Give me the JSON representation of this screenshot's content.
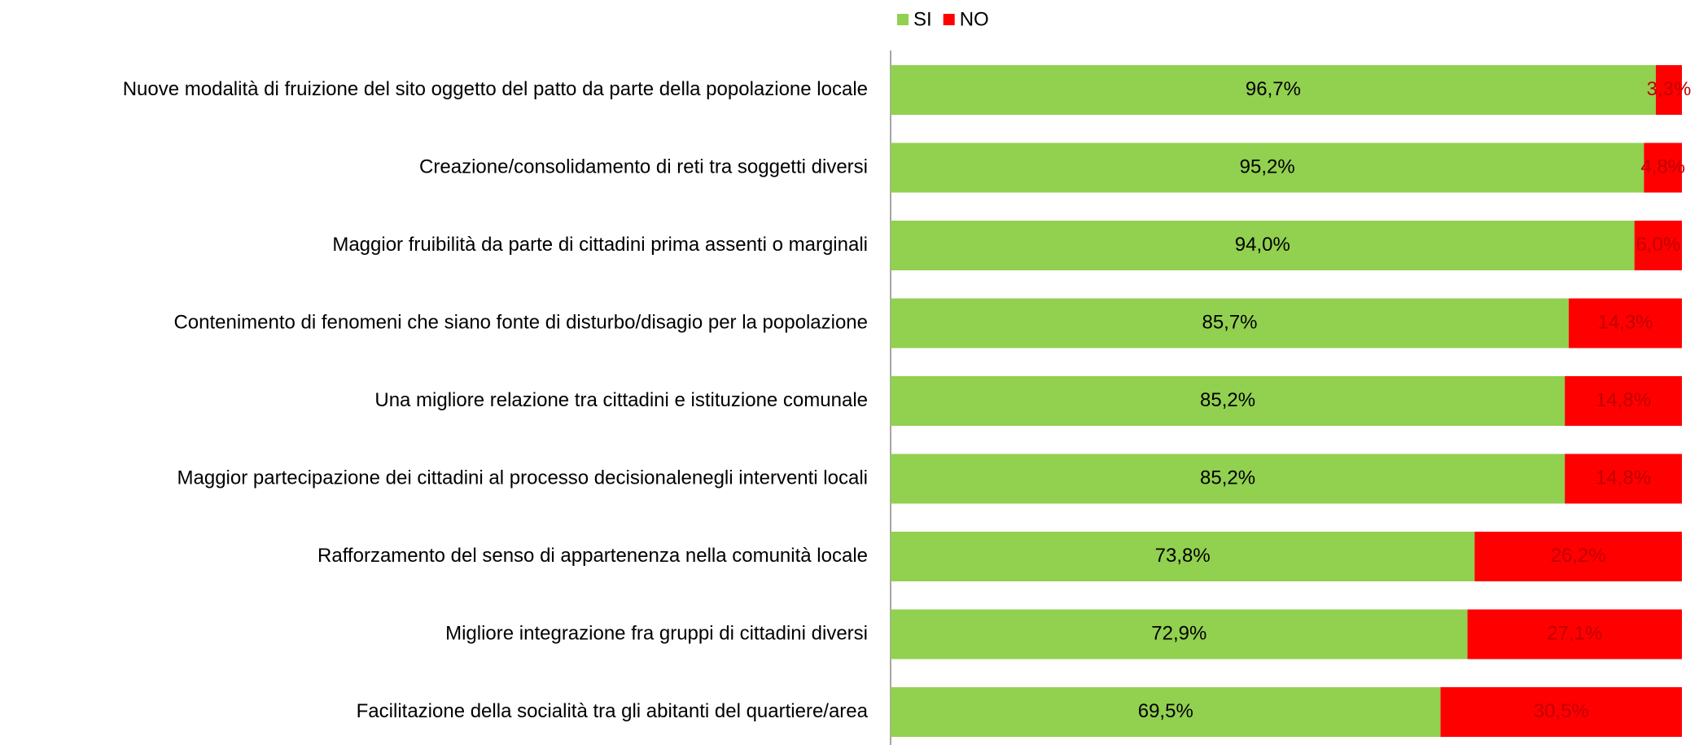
{
  "chart_data": {
    "type": "stacked_bar_horizontal",
    "categories": [
      "Nuove modalità di fruizione del sito oggetto del patto da parte della popolazione locale",
      "Creazione/consolidamento di reti tra soggetti diversi",
      "Maggior fruibilità da parte di cittadini prima assenti o marginali",
      "Contenimento di fenomeni che siano fonte di disturbo/disagio per la popolazione ",
      "Una migliore relazione tra cittadini e istituzione comunale",
      "Maggior partecipazione dei cittadini al processo decisionalenegli interventi locali",
      "Rafforzamento del senso di appartenenza nella comunità locale",
      "Migliore integrazione fra gruppi di cittadini diversi",
      "Facilitazione della socialità tra gli abitanti del quartiere/area"
    ],
    "series": [
      {
        "name": "SI",
        "color": "#92d050",
        "label_color": "#000000",
        "values": [
          96.7,
          95.2,
          94.0,
          85.7,
          85.2,
          85.2,
          73.8,
          72.9,
          69.5
        ],
        "value_labels": [
          "96,7%",
          "95,2%",
          "94,0%",
          "85,7%",
          "85,2%",
          "85,2%",
          "73,8%",
          "72,9%",
          "69,5%"
        ]
      },
      {
        "name": "NO",
        "color": "#ff0000",
        "label_color": "#c00000",
        "values": [
          3.3,
          4.8,
          6.0,
          14.3,
          14.8,
          14.8,
          26.2,
          27.1,
          30.5
        ],
        "value_labels": [
          "3,3%",
          "4,8%",
          "6,0%",
          "14,3%",
          "14,8%",
          "14,8%",
          "26,2%",
          "27,1%",
          "30,5%"
        ]
      }
    ],
    "xlim": [
      0,
      100
    ],
    "legend": "top"
  }
}
